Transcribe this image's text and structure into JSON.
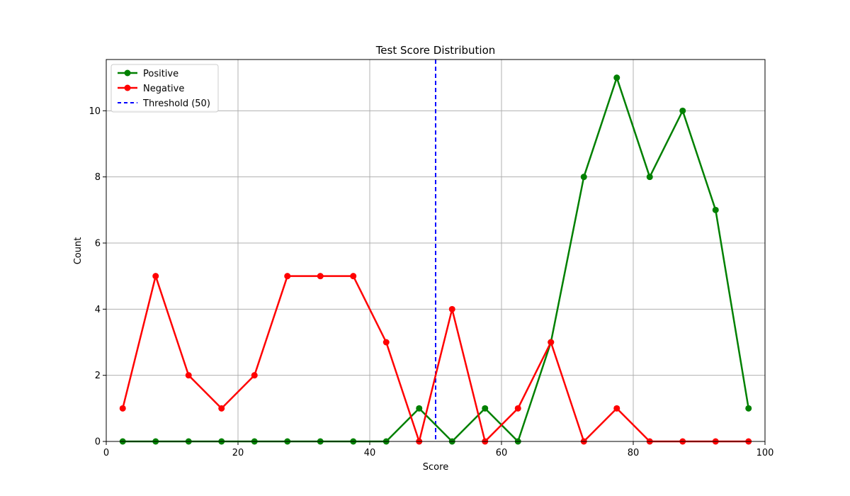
{
  "chart_data": {
    "type": "line",
    "title": "Test Score Distribution",
    "xlabel": "Score",
    "ylabel": "Count",
    "xlim": [
      0,
      100
    ],
    "ylim": [
      0,
      11.55
    ],
    "xticks": [
      0,
      20,
      40,
      60,
      80,
      100
    ],
    "yticks": [
      0,
      2,
      4,
      6,
      8,
      10
    ],
    "grid": true,
    "legend_position": "top-left",
    "x": [
      2.5,
      7.5,
      12.5,
      17.5,
      22.5,
      27.5,
      32.5,
      37.5,
      42.5,
      47.5,
      52.5,
      57.5,
      62.5,
      67.5,
      72.5,
      77.5,
      82.5,
      87.5,
      92.5,
      97.5
    ],
    "series": [
      {
        "name": "Positive",
        "color": "#008000",
        "values": [
          0,
          0,
          0,
          0,
          0,
          0,
          0,
          0,
          0,
          1,
          0,
          1,
          0,
          3,
          8,
          11,
          8,
          10,
          7,
          1
        ]
      },
      {
        "name": "Negative",
        "color": "#ff0000",
        "values": [
          1,
          5,
          2,
          1,
          2,
          5,
          5,
          5,
          3,
          0,
          4,
          0,
          1,
          3,
          0,
          1,
          0,
          0,
          0,
          0
        ]
      }
    ],
    "reference_lines": [
      {
        "name": "Threshold (50)",
        "orientation": "vertical",
        "x": 50,
        "color": "#0000ff",
        "style": "dashed"
      }
    ]
  }
}
